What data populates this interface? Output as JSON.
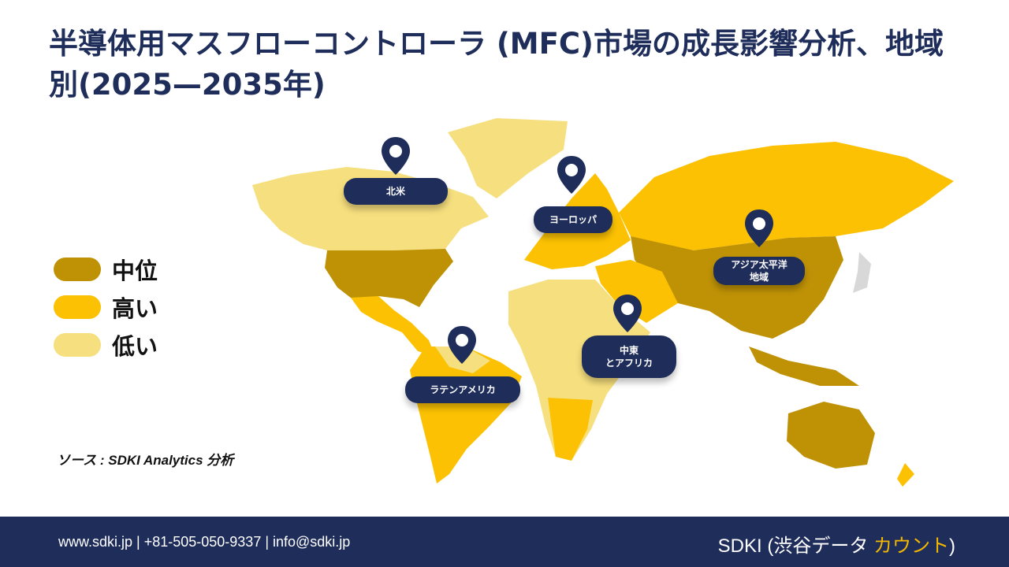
{
  "title": "半導体用マスフローコントローラ (MFC)市場の成長影響分析、地域別(2025—2035年)",
  "legend": [
    {
      "label": "中位",
      "color": "#bf9206"
    },
    {
      "label": "高い",
      "color": "#fbc102"
    },
    {
      "label": "低い",
      "color": "#f6df7e"
    }
  ],
  "regions": [
    {
      "label": "北米",
      "level": "低い"
    },
    {
      "label": "ヨーロッパ",
      "level": "高い"
    },
    {
      "label": "アジア太平洋\n地域",
      "level": "中位"
    },
    {
      "label": "中東\nとアフリカ",
      "level": "低い"
    },
    {
      "label": "ラテンアメリカ",
      "level": "高い"
    }
  ],
  "source": "ソース : SDKI Analytics 分析",
  "footer": {
    "contact": "www.sdki.jp | +81-505-050-9337 | info@sdki.jp",
    "brand_prefix": "SDKI (渋谷データ ",
    "brand_accent": "カウント",
    "brand_suffix": ")"
  },
  "colors": {
    "navy": "#1f2d5a",
    "medium": "#bf9206",
    "high": "#fbc102",
    "low": "#f6df7e"
  }
}
